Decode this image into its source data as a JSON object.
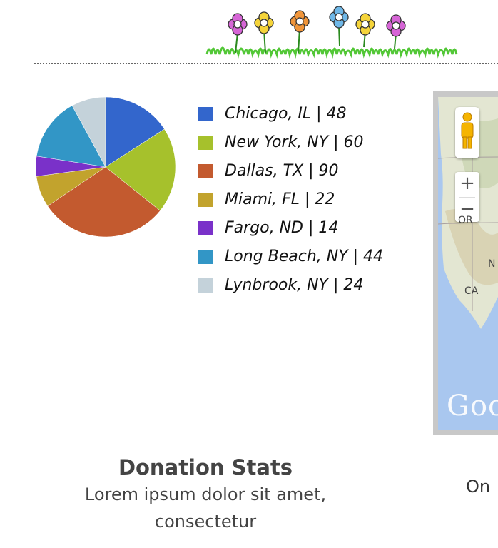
{
  "header": {
    "banner_icon": "flower-banner-icon"
  },
  "chart_data": {
    "type": "pie",
    "categories": [
      "Chicago, IL | 48",
      "New York, NY | 60",
      "Dallas, TX | 90",
      "Miami, FL | 22",
      "Fargo, ND | 14",
      "Long Beach, NY | 44",
      "Lynbrook, NY | 24"
    ],
    "values": [
      48,
      60,
      90,
      22,
      14,
      44,
      24
    ],
    "colors": [
      "#3366cc",
      "#a6c12c",
      "#c35a2f",
      "#c2a32d",
      "#7a31c9",
      "#3296c6",
      "#c4d2da"
    ],
    "legend": "right"
  },
  "map": {
    "labels": {
      "or": "OR",
      "ca": "CA",
      "n": "N"
    },
    "zoom_in": "+",
    "zoom_out": "−",
    "logo": "Goo",
    "pegman_icon": "pegman-icon"
  },
  "stats": {
    "title": "Donation Stats",
    "text": "Lorem ipsum dolor sit amet, consectetur"
  },
  "right_text": "On"
}
